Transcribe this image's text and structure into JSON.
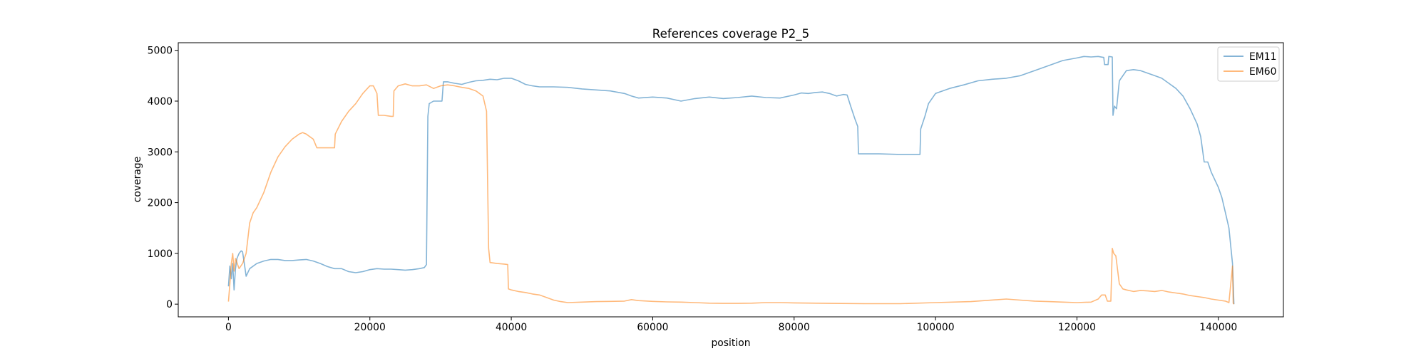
{
  "chart_data": {
    "type": "line",
    "title": "References coverage P2_5",
    "xlabel": "position",
    "ylabel": "coverage",
    "xlim": [
      -7100,
      149200
    ],
    "ylim": [
      -250,
      5150
    ],
    "xticks": [
      0,
      20000,
      40000,
      60000,
      80000,
      100000,
      120000,
      140000
    ],
    "xtick_labels": [
      "0",
      "20000",
      "40000",
      "60000",
      "80000",
      "100000",
      "120000",
      "140000"
    ],
    "yticks": [
      0,
      1000,
      2000,
      3000,
      4000,
      5000
    ],
    "ytick_labels": [
      "0",
      "1000",
      "2000",
      "3000",
      "4000",
      "5000"
    ],
    "grid": false,
    "legend_position": "upper right",
    "series": [
      {
        "name": "EM11",
        "color": "#1f77b4",
        "points": [
          [
            0,
            350
          ],
          [
            200,
            750
          ],
          [
            400,
            500
          ],
          [
            600,
            800
          ],
          [
            800,
            280
          ],
          [
            1000,
            700
          ],
          [
            1200,
            900
          ],
          [
            1500,
            1000
          ],
          [
            1800,
            1050
          ],
          [
            2000,
            1030
          ],
          [
            2300,
            750
          ],
          [
            2500,
            550
          ],
          [
            3000,
            700
          ],
          [
            4000,
            800
          ],
          [
            5000,
            850
          ],
          [
            6000,
            880
          ],
          [
            7000,
            880
          ],
          [
            8000,
            860
          ],
          [
            9000,
            860
          ],
          [
            10000,
            870
          ],
          [
            11000,
            880
          ],
          [
            12000,
            850
          ],
          [
            13000,
            800
          ],
          [
            14000,
            740
          ],
          [
            15000,
            700
          ],
          [
            16000,
            700
          ],
          [
            17000,
            640
          ],
          [
            18000,
            620
          ],
          [
            19000,
            640
          ],
          [
            20000,
            680
          ],
          [
            21000,
            700
          ],
          [
            22000,
            690
          ],
          [
            23000,
            690
          ],
          [
            24000,
            680
          ],
          [
            25000,
            670
          ],
          [
            26000,
            680
          ],
          [
            27000,
            700
          ],
          [
            27700,
            720
          ],
          [
            28000,
            780
          ],
          [
            28200,
            3700
          ],
          [
            28400,
            3950
          ],
          [
            29000,
            4000
          ],
          [
            30000,
            4000
          ],
          [
            30200,
            4000
          ],
          [
            30400,
            4380
          ],
          [
            31000,
            4380
          ],
          [
            32000,
            4350
          ],
          [
            33000,
            4330
          ],
          [
            34000,
            4370
          ],
          [
            35000,
            4400
          ],
          [
            36000,
            4410
          ],
          [
            37000,
            4430
          ],
          [
            38000,
            4420
          ],
          [
            39000,
            4450
          ],
          [
            40000,
            4450
          ],
          [
            41000,
            4400
          ],
          [
            42000,
            4330
          ],
          [
            43000,
            4300
          ],
          [
            44000,
            4280
          ],
          [
            46000,
            4280
          ],
          [
            48000,
            4270
          ],
          [
            50000,
            4240
          ],
          [
            52000,
            4220
          ],
          [
            54000,
            4200
          ],
          [
            56000,
            4150
          ],
          [
            57000,
            4100
          ],
          [
            58000,
            4060
          ],
          [
            60000,
            4080
          ],
          [
            62000,
            4060
          ],
          [
            64000,
            4000
          ],
          [
            66000,
            4050
          ],
          [
            68000,
            4080
          ],
          [
            70000,
            4050
          ],
          [
            72000,
            4070
          ],
          [
            74000,
            4100
          ],
          [
            76000,
            4070
          ],
          [
            78000,
            4060
          ],
          [
            80000,
            4120
          ],
          [
            81000,
            4160
          ],
          [
            82000,
            4150
          ],
          [
            83000,
            4170
          ],
          [
            84000,
            4180
          ],
          [
            85000,
            4150
          ],
          [
            86000,
            4100
          ],
          [
            87000,
            4130
          ],
          [
            87500,
            4120
          ],
          [
            88000,
            3900
          ],
          [
            88600,
            3650
          ],
          [
            89000,
            3500
          ],
          [
            89100,
            2960
          ],
          [
            92000,
            2960
          ],
          [
            95000,
            2950
          ],
          [
            97800,
            2950
          ],
          [
            97900,
            3450
          ],
          [
            98500,
            3700
          ],
          [
            99000,
            3950
          ],
          [
            100000,
            4150
          ],
          [
            101000,
            4200
          ],
          [
            102000,
            4250
          ],
          [
            104000,
            4320
          ],
          [
            106000,
            4400
          ],
          [
            108000,
            4430
          ],
          [
            110000,
            4450
          ],
          [
            112000,
            4500
          ],
          [
            114000,
            4600
          ],
          [
            116000,
            4700
          ],
          [
            118000,
            4800
          ],
          [
            120000,
            4850
          ],
          [
            121000,
            4880
          ],
          [
            122000,
            4870
          ],
          [
            123000,
            4880
          ],
          [
            123800,
            4860
          ],
          [
            123900,
            4720
          ],
          [
            124400,
            4720
          ],
          [
            124500,
            4880
          ],
          [
            125000,
            4870
          ],
          [
            125100,
            3720
          ],
          [
            125300,
            3900
          ],
          [
            125600,
            3850
          ],
          [
            126000,
            4400
          ],
          [
            127000,
            4600
          ],
          [
            128000,
            4620
          ],
          [
            129000,
            4600
          ],
          [
            130000,
            4550
          ],
          [
            131000,
            4500
          ],
          [
            132000,
            4450
          ],
          [
            133000,
            4350
          ],
          [
            134000,
            4250
          ],
          [
            135000,
            4100
          ],
          [
            136000,
            3850
          ],
          [
            137000,
            3550
          ],
          [
            137500,
            3300
          ],
          [
            138000,
            2800
          ],
          [
            138500,
            2800
          ],
          [
            139000,
            2600
          ],
          [
            140000,
            2300
          ],
          [
            140500,
            2100
          ],
          [
            141000,
            1800
          ],
          [
            141500,
            1500
          ],
          [
            142000,
            800
          ],
          [
            142200,
            0
          ]
        ]
      },
      {
        "name": "EM60",
        "color": "#ff7f0e",
        "points": [
          [
            0,
            50
          ],
          [
            200,
            400
          ],
          [
            400,
            800
          ],
          [
            600,
            1000
          ],
          [
            800,
            650
          ],
          [
            1000,
            900
          ],
          [
            1500,
            700
          ],
          [
            2000,
            800
          ],
          [
            2500,
            1000
          ],
          [
            3000,
            1600
          ],
          [
            3500,
            1800
          ],
          [
            4000,
            1900
          ],
          [
            5000,
            2200
          ],
          [
            6000,
            2600
          ],
          [
            7000,
            2900
          ],
          [
            8000,
            3100
          ],
          [
            9000,
            3250
          ],
          [
            10000,
            3350
          ],
          [
            10500,
            3380
          ],
          [
            11000,
            3350
          ],
          [
            12000,
            3250
          ],
          [
            12500,
            3080
          ],
          [
            13000,
            3080
          ],
          [
            14000,
            3080
          ],
          [
            15000,
            3080
          ],
          [
            15100,
            3350
          ],
          [
            16000,
            3600
          ],
          [
            17000,
            3800
          ],
          [
            18000,
            3950
          ],
          [
            19000,
            4150
          ],
          [
            20000,
            4300
          ],
          [
            20500,
            4300
          ],
          [
            21000,
            4150
          ],
          [
            21200,
            3720
          ],
          [
            22000,
            3720
          ],
          [
            23000,
            3700
          ],
          [
            23300,
            3700
          ],
          [
            23400,
            4200
          ],
          [
            24000,
            4300
          ],
          [
            25000,
            4340
          ],
          [
            26000,
            4300
          ],
          [
            27000,
            4300
          ],
          [
            28000,
            4320
          ],
          [
            29000,
            4250
          ],
          [
            30000,
            4300
          ],
          [
            31000,
            4320
          ],
          [
            32000,
            4300
          ],
          [
            33000,
            4270
          ],
          [
            34000,
            4250
          ],
          [
            35000,
            4200
          ],
          [
            36000,
            4100
          ],
          [
            36500,
            3800
          ],
          [
            36800,
            1100
          ],
          [
            37000,
            820
          ],
          [
            38000,
            800
          ],
          [
            39000,
            790
          ],
          [
            39500,
            780
          ],
          [
            39600,
            300
          ],
          [
            40000,
            280
          ],
          [
            41000,
            250
          ],
          [
            42000,
            230
          ],
          [
            43000,
            200
          ],
          [
            44000,
            180
          ],
          [
            45000,
            130
          ],
          [
            46000,
            80
          ],
          [
            47000,
            50
          ],
          [
            48000,
            30
          ],
          [
            50000,
            40
          ],
          [
            52000,
            50
          ],
          [
            54000,
            55
          ],
          [
            56000,
            60
          ],
          [
            57000,
            90
          ],
          [
            58000,
            70
          ],
          [
            60000,
            55
          ],
          [
            62000,
            45
          ],
          [
            64000,
            40
          ],
          [
            66000,
            30
          ],
          [
            68000,
            20
          ],
          [
            70000,
            15
          ],
          [
            72000,
            15
          ],
          [
            74000,
            20
          ],
          [
            76000,
            30
          ],
          [
            78000,
            30
          ],
          [
            80000,
            25
          ],
          [
            85000,
            15
          ],
          [
            90000,
            10
          ],
          [
            95000,
            10
          ],
          [
            100000,
            30
          ],
          [
            105000,
            50
          ],
          [
            110000,
            100
          ],
          [
            112000,
            80
          ],
          [
            114000,
            60
          ],
          [
            116000,
            50
          ],
          [
            118000,
            40
          ],
          [
            120000,
            30
          ],
          [
            122000,
            40
          ],
          [
            123000,
            100
          ],
          [
            123500,
            180
          ],
          [
            124000,
            180
          ],
          [
            124300,
            60
          ],
          [
            124800,
            60
          ],
          [
            125000,
            1100
          ],
          [
            125200,
            1000
          ],
          [
            125500,
            950
          ],
          [
            126000,
            400
          ],
          [
            126500,
            300
          ],
          [
            127000,
            280
          ],
          [
            128000,
            250
          ],
          [
            129000,
            270
          ],
          [
            130000,
            260
          ],
          [
            131000,
            250
          ],
          [
            132000,
            270
          ],
          [
            133000,
            240
          ],
          [
            134000,
            220
          ],
          [
            135000,
            200
          ],
          [
            136000,
            170
          ],
          [
            137000,
            150
          ],
          [
            138000,
            130
          ],
          [
            139000,
            100
          ],
          [
            140000,
            80
          ],
          [
            141000,
            60
          ],
          [
            141500,
            30
          ],
          [
            142000,
            750
          ],
          [
            142100,
            20
          ],
          [
            142200,
            0
          ]
        ]
      }
    ]
  }
}
